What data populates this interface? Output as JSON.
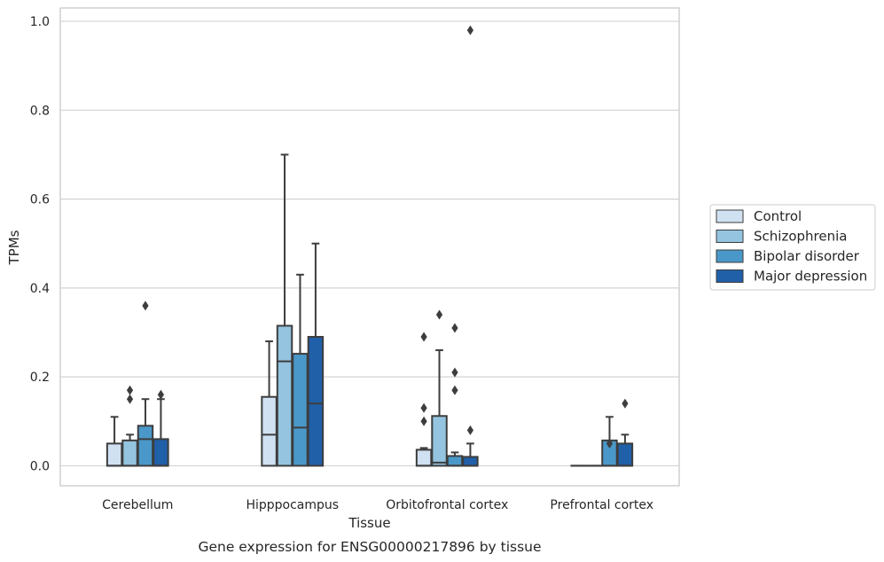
{
  "chart_data": {
    "type": "box",
    "xlabel": "Tissue",
    "ylabel": "TPMs",
    "caption": "Gene expression for ENSG00000217896 by tissue",
    "ylim": [
      -0.045,
      1.03
    ],
    "yticks": [
      "0.0",
      "0.2",
      "0.4",
      "0.6",
      "0.8",
      "1.0"
    ],
    "ytick_values": [
      0,
      0.2,
      0.4,
      0.6,
      0.8,
      1.0
    ],
    "grid": true,
    "legend_position": "right",
    "categories": [
      "Cerebellum",
      "Hipppocampus",
      "Orbitofrontal cortex",
      "Prefrontal cortex"
    ],
    "series": [
      {
        "name": "Control",
        "color": "#d0e1f2",
        "boxes": [
          {
            "q1": 0,
            "median": 0,
            "q3": 0.05,
            "whisker_low": 0,
            "whisker_high": 0.11,
            "outliers": []
          },
          {
            "q1": 0,
            "median": 0.07,
            "q3": 0.155,
            "whisker_low": 0,
            "whisker_high": 0.28,
            "outliers": []
          },
          {
            "q1": 0,
            "median": 0,
            "q3": 0.036,
            "whisker_low": 0,
            "whisker_high": 0.04,
            "outliers": [
              0.1,
              0.13,
              0.29
            ]
          },
          {
            "q1": 0,
            "median": 0,
            "q3": 0,
            "whisker_low": 0,
            "whisker_high": 0,
            "outliers": []
          }
        ]
      },
      {
        "name": "Schizophrenia",
        "color": "#94c4df",
        "boxes": [
          {
            "q1": 0,
            "median": 0,
            "q3": 0.057,
            "whisker_low": 0,
            "whisker_high": 0.07,
            "outliers": [
              0.15,
              0.17
            ]
          },
          {
            "q1": 0,
            "median": 0.235,
            "q3": 0.315,
            "whisker_low": 0,
            "whisker_high": 0.7,
            "outliers": []
          },
          {
            "q1": 0,
            "median": 0.007,
            "q3": 0.112,
            "whisker_low": 0,
            "whisker_high": 0.26,
            "outliers": [
              0.34
            ]
          },
          {
            "q1": 0,
            "median": 0,
            "q3": 0,
            "whisker_low": 0,
            "whisker_high": 0,
            "outliers": []
          }
        ]
      },
      {
        "name": "Bipolar disorder",
        "color": "#4a98c9",
        "boxes": [
          {
            "q1": 0,
            "median": 0.06,
            "q3": 0.09,
            "whisker_low": 0,
            "whisker_high": 0.15,
            "outliers": [
              0.36
            ]
          },
          {
            "q1": 0,
            "median": 0.086,
            "q3": 0.252,
            "whisker_low": 0,
            "whisker_high": 0.43,
            "outliers": []
          },
          {
            "q1": 0,
            "median": 0,
            "q3": 0.022,
            "whisker_low": 0,
            "whisker_high": 0.03,
            "outliers": [
              0.17,
              0.21,
              0.31
            ]
          },
          {
            "q1": 0,
            "median": 0,
            "q3": 0.057,
            "whisker_low": 0,
            "whisker_high": 0.11,
            "outliers": [
              0.05
            ]
          }
        ]
      },
      {
        "name": "Major depression",
        "color": "#2060a8",
        "boxes": [
          {
            "q1": 0,
            "median": 0,
            "q3": 0.06,
            "whisker_low": 0,
            "whisker_high": 0.15,
            "outliers": [
              0.16
            ]
          },
          {
            "q1": 0,
            "median": 0.14,
            "q3": 0.29,
            "whisker_low": 0,
            "whisker_high": 0.5,
            "outliers": []
          },
          {
            "q1": 0,
            "median": 0,
            "q3": 0.02,
            "whisker_low": 0,
            "whisker_high": 0.05,
            "outliers": [
              0.08,
              0.98
            ]
          },
          {
            "q1": 0,
            "median": 0,
            "q3": 0.05,
            "whisker_low": 0,
            "whisker_high": 0.07,
            "outliers": [
              0.14
            ]
          }
        ]
      }
    ]
  }
}
